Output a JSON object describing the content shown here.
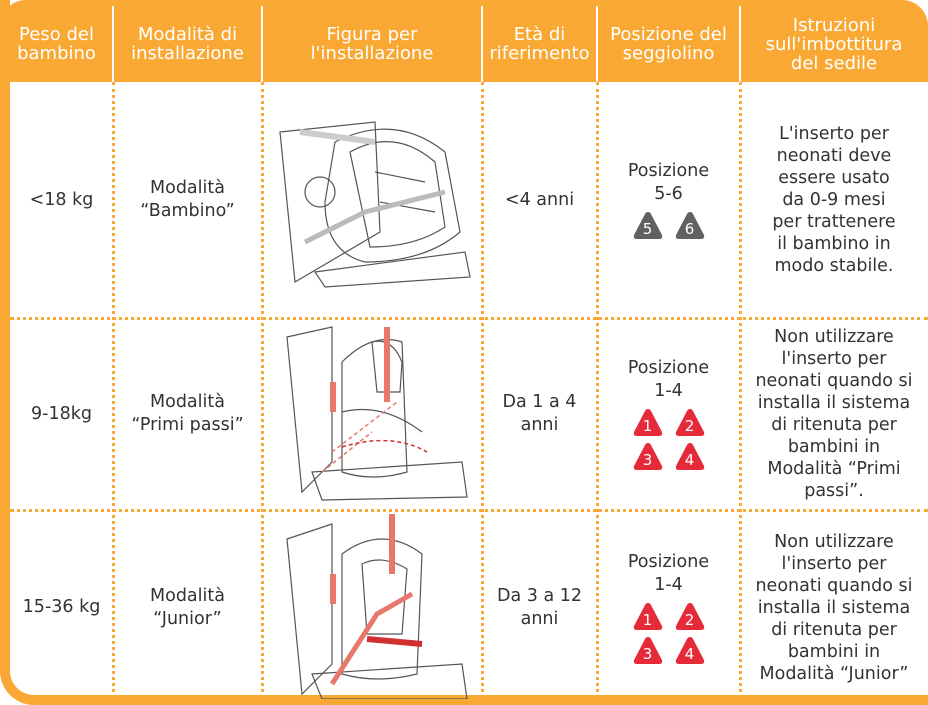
{
  "table": {
    "headers": [
      [
        "Peso del",
        "bambino"
      ],
      [
        "Modalità di",
        "installazione"
      ],
      [
        "Figura per",
        "l'installazione"
      ],
      [
        "Età di",
        "riferimento"
      ],
      [
        "Posizione del",
        "seggiolino"
      ],
      [
        "Istruzioni",
        "sull'imbottitura",
        "del sedile"
      ]
    ],
    "rows": [
      {
        "weight": [
          "<18 kg"
        ],
        "mode": [
          "Modalità",
          "“Bambino”"
        ],
        "age": [
          "<4 anni"
        ],
        "position": [
          "Posizione",
          "5-6"
        ],
        "badges": [
          "5",
          "6"
        ],
        "instructions": [
          "L'inserto per",
          "neonati deve",
          "essere usato",
          "da 0-9 mesi",
          "per trattenere",
          "il bambino in",
          "modo stabile."
        ]
      },
      {
        "weight": [
          "9-18kg"
        ],
        "mode": [
          "Modalità",
          "“Primi passi”"
        ],
        "age": [
          "Da 1 a 4",
          "anni"
        ],
        "position": [
          "Posizione",
          "1-4"
        ],
        "badges": [
          "1",
          "2",
          "3",
          "4"
        ],
        "instructions": [
          "Non utilizzare",
          "l'inserto per",
          "neonati quando si",
          "installa il sistema",
          "di ritenuta per",
          "bambini in",
          "Modalità “Primi",
          "passi”."
        ]
      },
      {
        "weight": [
          "15-36 kg"
        ],
        "mode": [
          "Modalità",
          "“Junior”"
        ],
        "age": [
          "Da 3 a 12",
          "anni"
        ],
        "position": [
          "Posizione",
          "1-4"
        ],
        "badges": [
          "1",
          "2",
          "3",
          "4"
        ],
        "instructions": [
          "Non utilizzare",
          "l'inserto per",
          "neonati quando si",
          "installa il sistema",
          "di ritenuta per",
          "bambini in",
          "Modalità “Junior”"
        ]
      }
    ]
  }
}
